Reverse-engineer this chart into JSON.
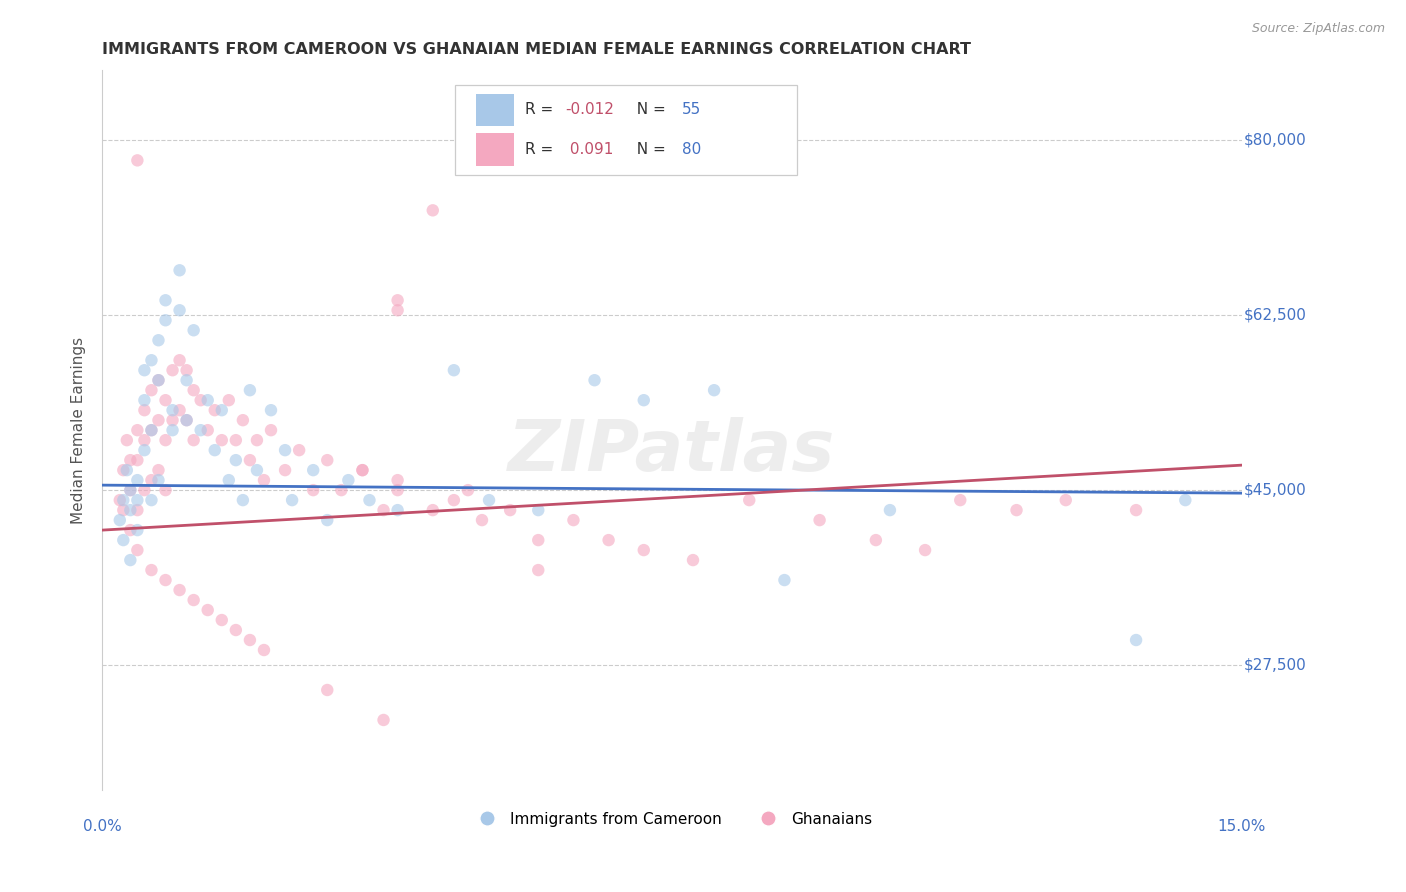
{
  "title": "IMMIGRANTS FROM CAMEROON VS GHANAIAN MEDIAN FEMALE EARNINGS CORRELATION CHART",
  "source": "Source: ZipAtlas.com",
  "ylabel": "Median Female Earnings",
  "ytick_labels": [
    "$27,500",
    "$45,000",
    "$62,500",
    "$80,000"
  ],
  "ytick_values": [
    27500,
    45000,
    62500,
    80000
  ],
  "ymin": 15000,
  "ymax": 87000,
  "xmin": -0.002,
  "xmax": 0.16,
  "bottom_legend_blue": "Immigrants from Cameroon",
  "bottom_legend_pink": "Ghanaians",
  "blue_scatter_x": [
    0.0005,
    0.001,
    0.001,
    0.0015,
    0.002,
    0.002,
    0.002,
    0.003,
    0.003,
    0.003,
    0.004,
    0.004,
    0.004,
    0.005,
    0.005,
    0.005,
    0.006,
    0.006,
    0.006,
    0.007,
    0.007,
    0.008,
    0.008,
    0.009,
    0.009,
    0.01,
    0.01,
    0.011,
    0.012,
    0.013,
    0.014,
    0.015,
    0.016,
    0.017,
    0.018,
    0.019,
    0.02,
    0.022,
    0.024,
    0.025,
    0.028,
    0.03,
    0.033,
    0.036,
    0.04,
    0.048,
    0.053,
    0.06,
    0.068,
    0.075,
    0.085,
    0.095,
    0.11,
    0.145,
    0.152
  ],
  "blue_scatter_y": [
    42000,
    44000,
    40000,
    47000,
    45000,
    43000,
    38000,
    46000,
    44000,
    41000,
    57000,
    54000,
    49000,
    58000,
    51000,
    44000,
    60000,
    56000,
    46000,
    64000,
    62000,
    53000,
    51000,
    67000,
    63000,
    56000,
    52000,
    61000,
    51000,
    54000,
    49000,
    53000,
    46000,
    48000,
    44000,
    55000,
    47000,
    53000,
    49000,
    44000,
    47000,
    42000,
    46000,
    44000,
    43000,
    57000,
    44000,
    43000,
    56000,
    54000,
    55000,
    36000,
    43000,
    30000,
    44000
  ],
  "pink_scatter_x": [
    0.0005,
    0.001,
    0.001,
    0.0015,
    0.002,
    0.002,
    0.002,
    0.003,
    0.003,
    0.003,
    0.004,
    0.004,
    0.004,
    0.005,
    0.005,
    0.005,
    0.006,
    0.006,
    0.006,
    0.007,
    0.007,
    0.007,
    0.008,
    0.008,
    0.009,
    0.009,
    0.01,
    0.01,
    0.011,
    0.011,
    0.012,
    0.013,
    0.014,
    0.015,
    0.016,
    0.017,
    0.018,
    0.019,
    0.02,
    0.021,
    0.022,
    0.024,
    0.026,
    0.028,
    0.03,
    0.032,
    0.035,
    0.038,
    0.04,
    0.045,
    0.048,
    0.052,
    0.056,
    0.06,
    0.065,
    0.07,
    0.075,
    0.082,
    0.09,
    0.1,
    0.108,
    0.115,
    0.12,
    0.128,
    0.135,
    0.003,
    0.005,
    0.007,
    0.009,
    0.011,
    0.013,
    0.015,
    0.017,
    0.019,
    0.021,
    0.035,
    0.04,
    0.05,
    0.06,
    0.145
  ],
  "pink_scatter_y": [
    44000,
    47000,
    43000,
    50000,
    48000,
    45000,
    41000,
    51000,
    48000,
    43000,
    53000,
    50000,
    45000,
    55000,
    51000,
    46000,
    56000,
    52000,
    47000,
    54000,
    50000,
    45000,
    57000,
    52000,
    58000,
    53000,
    57000,
    52000,
    55000,
    50000,
    54000,
    51000,
    53000,
    50000,
    54000,
    50000,
    52000,
    48000,
    50000,
    46000,
    51000,
    47000,
    49000,
    45000,
    48000,
    45000,
    47000,
    43000,
    45000,
    43000,
    44000,
    42000,
    43000,
    40000,
    42000,
    40000,
    39000,
    38000,
    44000,
    42000,
    40000,
    39000,
    44000,
    43000,
    44000,
    39000,
    37000,
    36000,
    35000,
    34000,
    33000,
    32000,
    31000,
    30000,
    29000,
    47000,
    46000,
    45000,
    37000,
    43000
  ],
  "pink_outlier_x": [
    0.003,
    0.045,
    0.04,
    0.04,
    0.03,
    0.038
  ],
  "pink_outlier_y": [
    78000,
    73000,
    63000,
    64000,
    25000,
    22000
  ],
  "blue_line_x": [
    -0.002,
    0.16
  ],
  "blue_line_y": [
    45500,
    44700
  ],
  "pink_line_x": [
    -0.002,
    0.16
  ],
  "pink_line_y": [
    41000,
    47500
  ],
  "scatter_alpha": 0.6,
  "scatter_size": 80,
  "line_color_blue": "#4472C4",
  "line_color_pink": "#C0506A",
  "dot_color_blue": "#a8c8e8",
  "dot_color_pink": "#f4a8c0",
  "bg_color": "#ffffff",
  "grid_color": "#cccccc",
  "title_color": "#333333",
  "axis_label_color": "#4472C4",
  "source_color": "#999999",
  "watermark": "ZIPatlas"
}
